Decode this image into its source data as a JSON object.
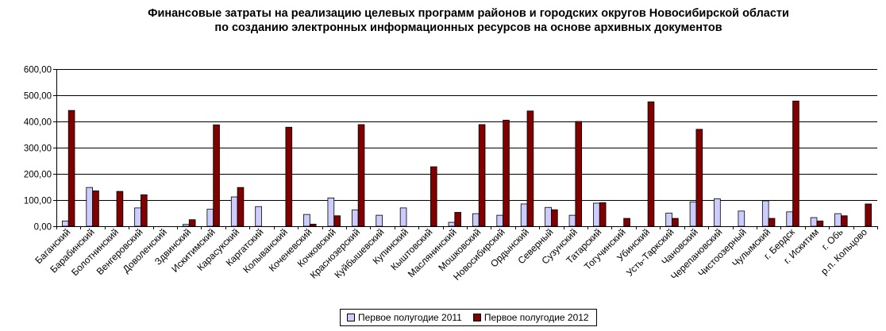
{
  "chart_data": {
    "type": "bar",
    "title_lines": [
      "Финансовые затраты на реализацию целевых программ районов и городских округов Новосибирской области",
      "по созданию электронных информационных ресурсов на основе архивных документов"
    ],
    "xlabel": "",
    "ylabel": "",
    "ylim": [
      0,
      600
    ],
    "yticks": [
      "0,00",
      "100,00",
      "200,00",
      "300,00",
      "400,00",
      "500,00",
      "600,00"
    ],
    "grid": true,
    "legend_position": "bottom",
    "categories": [
      "Баганский",
      "Барабинский",
      "Болотнинский",
      "Венгеровский",
      "Доволенский",
      "Здвинский",
      "Искитимский",
      "Карасукский",
      "Каргатский",
      "Колыванский",
      "Коченевский",
      "Кочковский",
      "Краснозерский",
      "Куйбышевский",
      "Купинский",
      "Кыштовский",
      "Маслянинский",
      "Мошковский",
      "Новосибирский",
      "Ордынский",
      "Северный",
      "Сузунский",
      "Татарский",
      "Тогучинский",
      "Убинский",
      "Усть-Таркский",
      "Чановский",
      "Черепановский",
      "Чистоозерный",
      "Чулымский",
      "г. Бердск",
      "г. Искитим",
      "г. Обь",
      "р.п. Кольцово"
    ],
    "series": [
      {
        "name": "Первое полугодие 2011",
        "color": "#CCCCFF",
        "values": [
          20,
          148,
          0,
          70,
          0,
          7,
          65,
          112,
          75,
          0,
          45,
          108,
          62,
          42,
          70,
          0,
          15,
          48,
          42,
          85,
          72,
          42,
          88,
          0,
          0,
          50,
          93,
          105,
          58,
          97,
          55,
          33,
          48,
          0
        ]
      },
      {
        "name": "Первое полугодие 2012",
        "color": "#800000",
        "values": [
          442,
          135,
          133,
          120,
          0,
          25,
          387,
          148,
          0,
          378,
          8,
          40,
          388,
          0,
          0,
          227,
          53,
          388,
          405,
          440,
          63,
          400,
          90,
          30,
          475,
          30,
          370,
          0,
          0,
          30,
          478,
          20,
          40,
          85
        ]
      }
    ]
  }
}
